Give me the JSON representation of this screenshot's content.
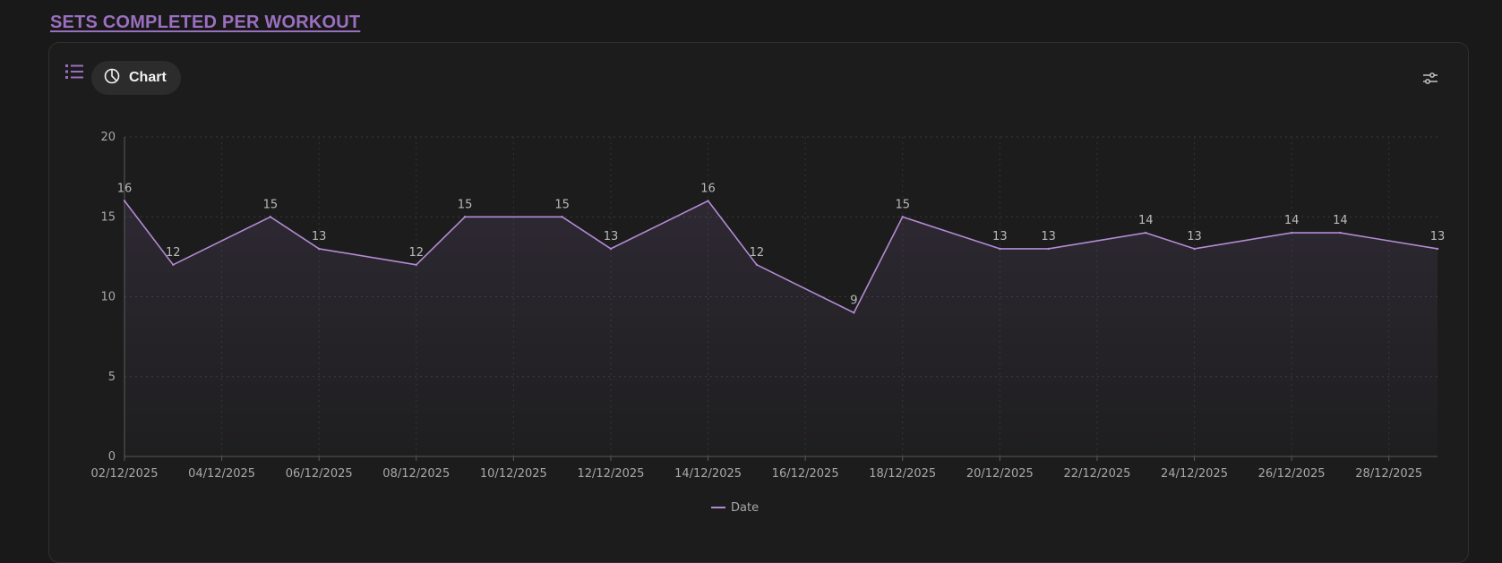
{
  "header": {
    "title": "SETS COMPLETED PER WORKOUT"
  },
  "toolbar": {
    "list_icon": "list-icon",
    "chart_tab_icon": "pie-chart-icon",
    "chart_tab_label": "Chart",
    "settings_icon": "sliders-icon"
  },
  "colors": {
    "accent": "#9b6fc0",
    "line": "#b38bd4",
    "background": "#191919",
    "card": "#1c1c1c"
  },
  "chart_data": {
    "type": "area",
    "x": [
      "02/12/2025",
      "03/12/2025",
      "05/12/2025",
      "06/12/2025",
      "08/12/2025",
      "09/12/2025",
      "11/12/2025",
      "12/12/2025",
      "14/12/2025",
      "15/12/2025",
      "17/12/2025",
      "18/12/2025",
      "20/12/2025",
      "21/12/2025",
      "23/12/2025",
      "24/12/2025",
      "26/12/2025",
      "27/12/2025",
      "29/12/2025"
    ],
    "series": [
      {
        "name": "Date",
        "values": [
          16,
          12,
          15,
          13,
          12,
          15,
          15,
          13,
          16,
          12,
          9,
          15,
          13,
          13,
          14,
          13,
          14,
          14,
          13
        ]
      }
    ],
    "x_ticks": [
      "02/12/2025",
      "04/12/2025",
      "06/12/2025",
      "08/12/2025",
      "10/12/2025",
      "12/12/2025",
      "14/12/2025",
      "16/12/2025",
      "18/12/2025",
      "20/12/2025",
      "22/12/2025",
      "24/12/2025",
      "26/12/2025",
      "28/12/2025"
    ],
    "y_ticks": [
      0,
      5,
      10,
      15,
      20
    ],
    "x_range": [
      "02/12/2025",
      "29/12/2025"
    ],
    "ylim": [
      0,
      20
    ],
    "grid": true,
    "legend": "bottom-center",
    "data_labels": true
  }
}
